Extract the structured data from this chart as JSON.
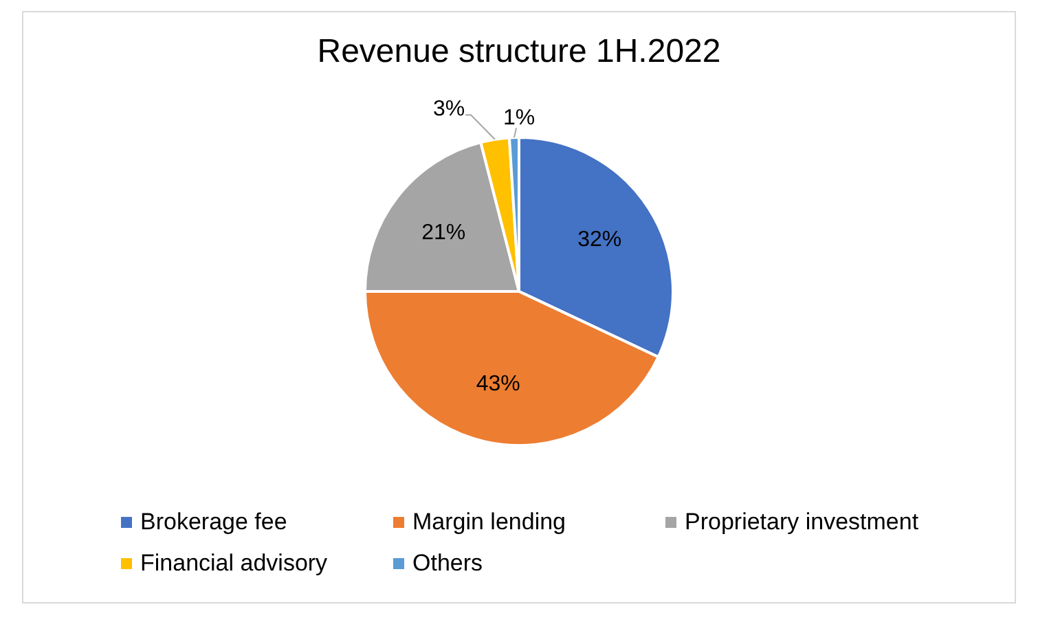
{
  "chart_data": {
    "type": "pie",
    "title": "Revenue structure 1H.2022",
    "categories": [
      "Brokerage fee",
      "Margin lending",
      "Proprietary investment",
      "Financial advisory",
      "Others"
    ],
    "values": [
      32,
      43,
      21,
      3,
      1
    ],
    "colors": [
      "#4472c4",
      "#ed7d31",
      "#a5a5a5",
      "#ffc000",
      "#5b9bd5"
    ],
    "value_labels": [
      "32%",
      "43%",
      "21%",
      "3%",
      "1%"
    ],
    "legend": "bottom"
  }
}
